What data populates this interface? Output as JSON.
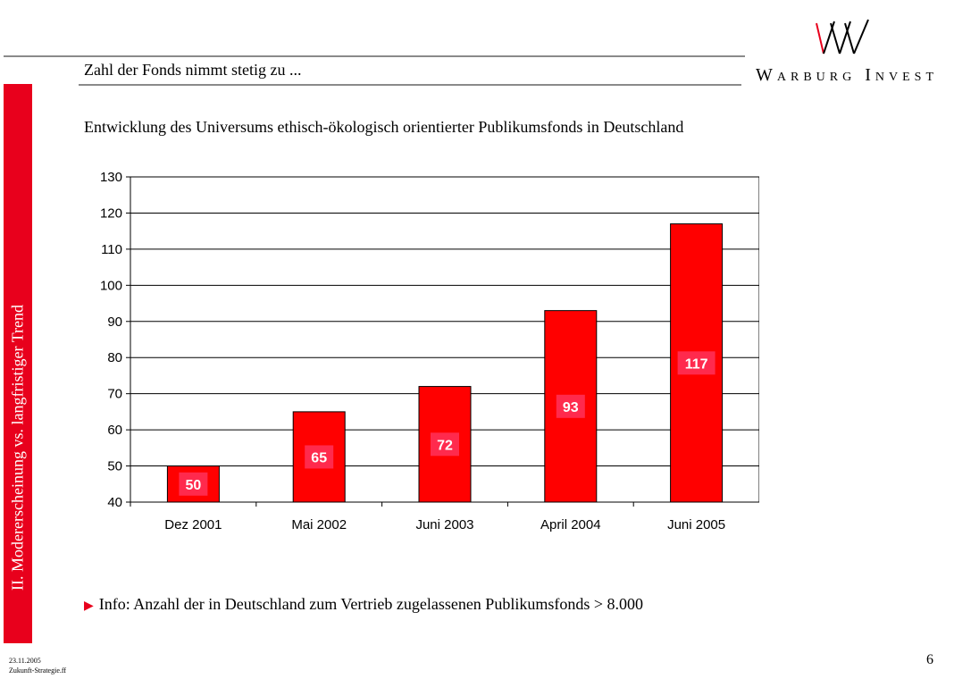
{
  "header": {
    "slide_title": "Zahl der Fonds nimmt stetig zu ...",
    "logo_text": "Warburg Invest"
  },
  "sidebar": {
    "label": "II. Modererscheinung vs. langfristiger Trend"
  },
  "chart_title": "Entwicklung des Universums ethisch-ökologisch orientierter Publikumsfonds in Deutschland",
  "chart_data": {
    "type": "bar",
    "categories": [
      "Dez 2001",
      "Mai 2002",
      "Juni 2003",
      "April 2004",
      "Juni 2005"
    ],
    "values": [
      50,
      65,
      72,
      93,
      117
    ],
    "ylim": [
      40,
      130
    ],
    "yticks": [
      40,
      50,
      60,
      70,
      80,
      90,
      100,
      110,
      120,
      130
    ],
    "grid": true,
    "bar_color": "#ff0000",
    "label_bg": "#ff2a4d",
    "label_color": "#ffffff"
  },
  "info": {
    "text": "Info: Anzahl der in Deutschland zum Vertrieb zugelassenen Publikumsfonds > 8.000",
    "arrow_icon": "triangle-right-icon"
  },
  "footer": {
    "date": "23.11.2005",
    "file": "Zukunft-Strategie.ff",
    "page": "6"
  },
  "colors": {
    "accent": "#e8001c",
    "rule": "#8a8a8a"
  }
}
